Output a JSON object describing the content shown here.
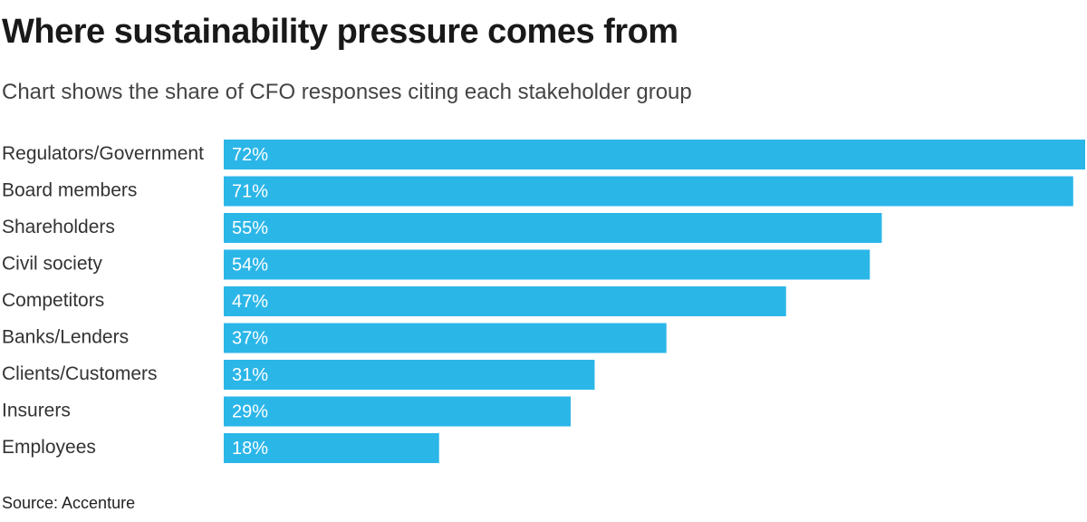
{
  "header": {
    "title": "Where sustainability pressure comes from",
    "subtitle": "Chart shows the share of CFO responses citing each stakeholder group"
  },
  "footer": {
    "source": "Source: Accenture"
  },
  "chart_data": {
    "type": "bar",
    "orientation": "horizontal",
    "title": "Where sustainability pressure comes from",
    "subtitle": "Chart shows the share of CFO responses citing each stakeholder group",
    "xlabel": "",
    "ylabel": "",
    "xlim": [
      0,
      72
    ],
    "grid": false,
    "legend": "none",
    "bar_color": "#2bb6e8",
    "categories": [
      "Regulators/Government",
      "Board members",
      "Shareholders",
      "Civil society",
      "Competitors",
      "Banks/Lenders",
      "Clients/Customers",
      "Insurers",
      "Employees"
    ],
    "values": [
      72,
      71,
      55,
      54,
      47,
      37,
      31,
      29,
      18
    ],
    "value_labels": [
      "72%",
      "71%",
      "55%",
      "54%",
      "47%",
      "37%",
      "31%",
      "29%",
      "18%"
    ]
  }
}
